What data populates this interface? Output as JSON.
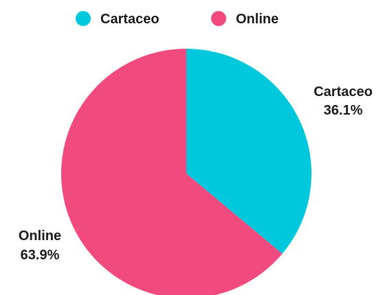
{
  "chart_data": {
    "type": "pie",
    "title": "",
    "legend": {
      "placement": "top-center",
      "entries": [
        {
          "label": "Cartaceo",
          "color": "#00c8dc"
        },
        {
          "label": "Online",
          "color": "#f04a7e"
        }
      ]
    },
    "slices": [
      {
        "label": "Cartaceo",
        "value": 36.1,
        "value_label": "36.1%",
        "color": "#00c8dc"
      },
      {
        "label": "Online",
        "value": 63.9,
        "value_label": "63.9%",
        "color": "#f04a7e"
      }
    ]
  }
}
